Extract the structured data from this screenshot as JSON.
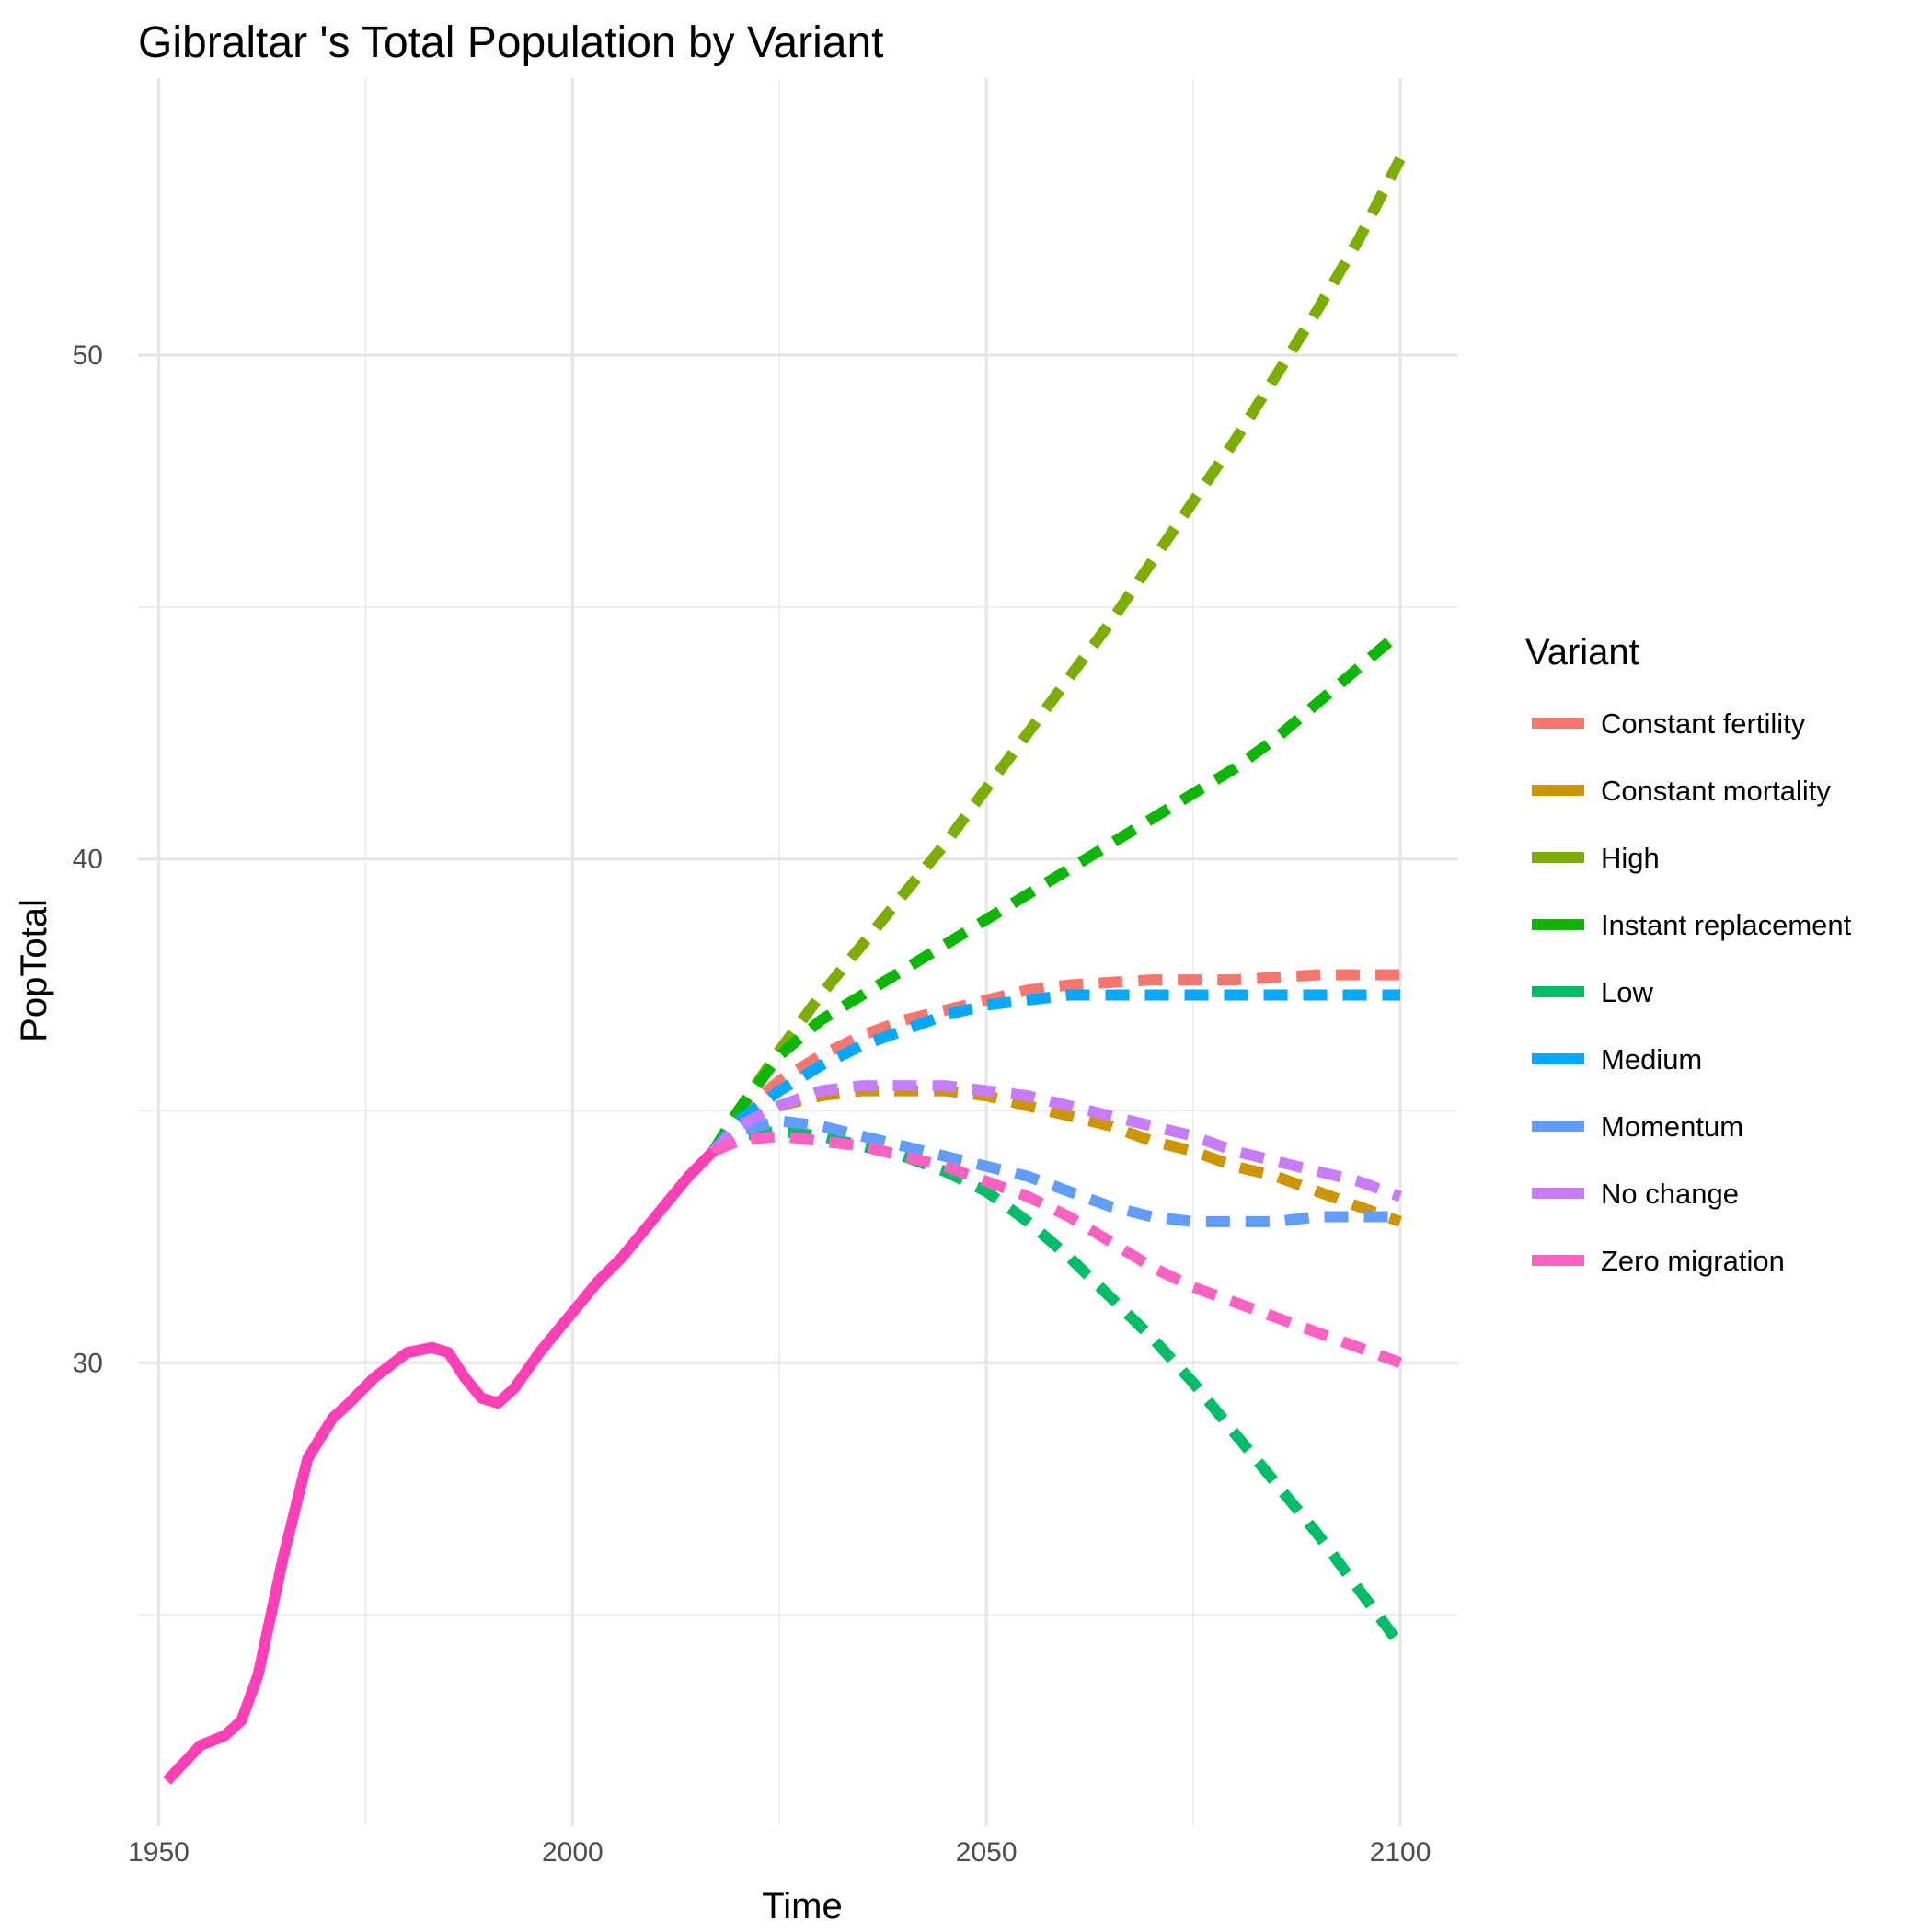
{
  "chart_data": {
    "type": "line",
    "title": "Gibraltar 's Total Population by Variant",
    "xlabel": "Time",
    "ylabel": "PopTotal",
    "xlim": [
      1947.5,
      2107
    ],
    "ylim": [
      20.8,
      55.5
    ],
    "x_ticks": [
      1950,
      2000,
      2050,
      2100
    ],
    "x_tick_labels": [
      "1950",
      "2000",
      "2050",
      "2100"
    ],
    "x_minor_ticks": [
      1975,
      2025,
      2075
    ],
    "y_ticks": [
      30,
      40,
      50
    ],
    "y_tick_labels": [
      "30",
      "40",
      "50"
    ],
    "y_minor_ticks": [
      25,
      35,
      45
    ],
    "grid": true,
    "legend": {
      "title": "Variant",
      "position": "right"
    },
    "historical": {
      "color": "#FF3FB6",
      "x": [
        1951,
        1955,
        1958,
        1960,
        1962,
        1965,
        1968,
        1971,
        1973,
        1976,
        1980,
        1983,
        1985,
        1987,
        1989,
        1991,
        1993,
        1996,
        2000,
        2003,
        2006,
        2010,
        2014,
        2017
      ],
      "y": [
        21.7,
        22.4,
        22.6,
        22.9,
        23.8,
        26.1,
        28.1,
        28.9,
        29.2,
        29.7,
        30.2,
        30.3,
        30.2,
        29.7,
        29.3,
        29.2,
        29.5,
        30.2,
        31.0,
        31.6,
        32.1,
        32.9,
        33.7,
        34.2
      ]
    },
    "series": [
      {
        "name": "Constant fertility",
        "color": "#F8766D",
        "x": [
          2017,
          2020,
          2025,
          2030,
          2035,
          2040,
          2045,
          2050,
          2055,
          2060,
          2070,
          2080,
          2090,
          2100
        ],
        "y": [
          34.2,
          34.9,
          35.6,
          36.1,
          36.5,
          36.8,
          37.0,
          37.2,
          37.4,
          37.5,
          37.6,
          37.6,
          37.7,
          37.7
        ]
      },
      {
        "name": "Constant mortality",
        "color": "#CD9600",
        "x": [
          2017,
          2020,
          2025,
          2030,
          2035,
          2040,
          2045,
          2050,
          2055,
          2060,
          2065,
          2070,
          2075,
          2080,
          2085,
          2090,
          2095,
          2100
        ],
        "y": [
          34.2,
          34.7,
          35.1,
          35.3,
          35.4,
          35.4,
          35.4,
          35.3,
          35.1,
          34.9,
          34.7,
          34.4,
          34.2,
          33.9,
          33.7,
          33.4,
          33.1,
          32.8
        ]
      },
      {
        "name": "High",
        "color": "#7CAE00",
        "x": [
          2017,
          2020,
          2025,
          2030,
          2035,
          2040,
          2045,
          2050,
          2055,
          2060,
          2065,
          2070,
          2075,
          2080,
          2085,
          2090,
          2095,
          2100
        ],
        "y": [
          34.2,
          35.0,
          36.2,
          37.3,
          38.3,
          39.3,
          40.3,
          41.4,
          42.5,
          43.6,
          44.7,
          45.9,
          47.1,
          48.3,
          49.6,
          50.9,
          52.3,
          53.9
        ]
      },
      {
        "name": "Instant replacement",
        "color": "#0CB702",
        "x": [
          2017,
          2020,
          2025,
          2030,
          2035,
          2040,
          2045,
          2050,
          2055,
          2060,
          2065,
          2070,
          2075,
          2080,
          2085,
          2090,
          2095,
          2100
        ],
        "y": [
          34.2,
          35.0,
          36.1,
          36.8,
          37.3,
          37.8,
          38.3,
          38.8,
          39.3,
          39.8,
          40.3,
          40.8,
          41.3,
          41.8,
          42.4,
          43.1,
          43.8,
          44.5
        ]
      },
      {
        "name": "Low",
        "color": "#00BE67",
        "x": [
          2017,
          2020,
          2025,
          2030,
          2035,
          2040,
          2045,
          2050,
          2055,
          2060,
          2065,
          2070,
          2075,
          2080,
          2085,
          2090,
          2095,
          2100
        ],
        "y": [
          34.2,
          34.5,
          34.6,
          34.5,
          34.3,
          34.1,
          33.8,
          33.4,
          32.8,
          32.1,
          31.3,
          30.5,
          29.6,
          28.6,
          27.6,
          26.6,
          25.5,
          24.4
        ]
      },
      {
        "name": "Medium",
        "color": "#00A9FF",
        "x": [
          2017,
          2020,
          2025,
          2030,
          2035,
          2040,
          2045,
          2050,
          2055,
          2060,
          2065,
          2070,
          2075,
          2080,
          2085,
          2090,
          2095,
          2100
        ],
        "y": [
          34.2,
          34.8,
          35.4,
          35.9,
          36.3,
          36.6,
          36.9,
          37.1,
          37.2,
          37.3,
          37.3,
          37.3,
          37.3,
          37.3,
          37.3,
          37.3,
          37.3,
          37.3
        ]
      },
      {
        "name": "Momentum",
        "color": "#619CFF",
        "x": [
          2017,
          2020,
          2025,
          2030,
          2035,
          2040,
          2045,
          2050,
          2055,
          2060,
          2065,
          2070,
          2075,
          2080,
          2085,
          2090,
          2095,
          2100
        ],
        "y": [
          34.2,
          34.6,
          34.8,
          34.7,
          34.5,
          34.3,
          34.1,
          33.9,
          33.7,
          33.4,
          33.1,
          32.9,
          32.8,
          32.8,
          32.8,
          32.9,
          32.9,
          32.9
        ]
      },
      {
        "name": "No change",
        "color": "#C77CFF",
        "x": [
          2017,
          2020,
          2025,
          2030,
          2035,
          2040,
          2045,
          2050,
          2055,
          2060,
          2065,
          2070,
          2075,
          2080,
          2085,
          2090,
          2095,
          2100
        ],
        "y": [
          34.2,
          34.7,
          35.1,
          35.4,
          35.5,
          35.5,
          35.5,
          35.4,
          35.3,
          35.1,
          34.9,
          34.7,
          34.5,
          34.2,
          34.0,
          33.8,
          33.6,
          33.3
        ]
      },
      {
        "name": "Zero migration",
        "color": "#FF61C3",
        "x": [
          2017,
          2020,
          2025,
          2030,
          2035,
          2040,
          2045,
          2050,
          2055,
          2060,
          2065,
          2070,
          2075,
          2080,
          2085,
          2090,
          2095,
          2100
        ],
        "y": [
          34.2,
          34.4,
          34.5,
          34.4,
          34.3,
          34.1,
          33.9,
          33.6,
          33.3,
          32.9,
          32.4,
          31.9,
          31.5,
          31.2,
          30.9,
          30.6,
          30.3,
          30.0
        ]
      }
    ]
  }
}
